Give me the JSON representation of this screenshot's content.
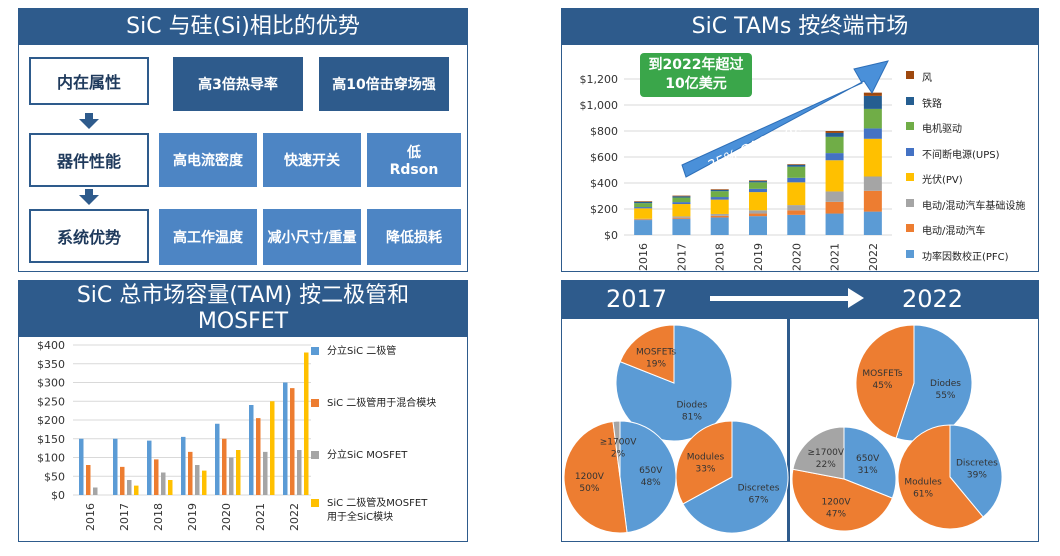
{
  "panels": {
    "advantages": {
      "title": "SiC 与硅(Si)相比的优势",
      "rows": [
        {
          "label": "内在属性",
          "items": [
            "高3倍热导率",
            "高10倍击穿场强"
          ]
        },
        {
          "label": "器件性能",
          "items": [
            "高电流密度",
            "快速开关",
            "低\nRdson"
          ]
        },
        {
          "label": "系统优势",
          "items": [
            "高工作温度",
            "减小尺寸/重量",
            "降低损耗"
          ]
        }
      ]
    },
    "tam": {
      "title": "SiC TAMs 按终端市场",
      "callout": "到2022年超过\n10亿美元",
      "cagr": "35% CAGR 2017-22"
    },
    "diode_mosfet": {
      "title": "SiC 总市场容量(TAM) 按二极管和\nMOSFET"
    },
    "pies": {
      "year_left": "2017",
      "year_right": "2022"
    }
  },
  "chart_data": [
    {
      "type": "bar",
      "stacked": true,
      "title": "SiC TAMs 按终端市场",
      "categories": [
        "2016",
        "2017",
        "2018",
        "2019",
        "2020",
        "2021",
        "2022"
      ],
      "ylim": [
        0,
        1200
      ],
      "yticks": [
        "$0",
        "$200",
        "$400",
        "$600",
        "$800",
        "$1,000",
        "$1,200"
      ],
      "series": [
        {
          "name": "功率因数校正(PFC)",
          "color": "#5b9bd5",
          "values": [
            115,
            125,
            135,
            145,
            155,
            165,
            180
          ]
        },
        {
          "name": "电动/混动汽车",
          "color": "#ed7d31",
          "values": [
            5,
            8,
            12,
            20,
            35,
            90,
            160
          ]
        },
        {
          "name": "电动/混动汽车基础设施",
          "color": "#a5a5a5",
          "values": [
            5,
            10,
            15,
            25,
            40,
            80,
            110
          ]
        },
        {
          "name": "光伏(PV)",
          "color": "#ffc000",
          "values": [
            80,
            95,
            110,
            140,
            175,
            240,
            290
          ]
        },
        {
          "name": "不间断电源(UPS)",
          "color": "#4472c4",
          "values": [
            10,
            15,
            20,
            25,
            35,
            55,
            80
          ]
        },
        {
          "name": "电机驱动",
          "color": "#70ad47",
          "values": [
            30,
            35,
            45,
            50,
            85,
            125,
            150
          ]
        },
        {
          "name": "铁路",
          "color": "#255e91",
          "values": [
            10,
            10,
            10,
            10,
            15,
            30,
            100
          ]
        },
        {
          "name": "风",
          "color": "#9e480e",
          "values": [
            5,
            5,
            5,
            5,
            5,
            15,
            25
          ]
        }
      ]
    },
    {
      "type": "bar",
      "title": "SiC 总市场容量(TAM) 按二极管和MOSFET",
      "categories": [
        "2016",
        "2017",
        "2018",
        "2019",
        "2020",
        "2021",
        "2022"
      ],
      "ylim": [
        0,
        400
      ],
      "yticks": [
        "$0",
        "$50",
        "$100",
        "$150",
        "$200",
        "$250",
        "$300",
        "$350",
        "$400"
      ],
      "series": [
        {
          "name": "分立SiC 二极管",
          "color": "#5b9bd5",
          "values": [
            150,
            150,
            145,
            155,
            190,
            240,
            300
          ]
        },
        {
          "name": "SiC 二极管用于混合模块",
          "color": "#ed7d31",
          "values": [
            80,
            75,
            95,
            115,
            150,
            205,
            285
          ]
        },
        {
          "name": "分立SiC MOSFET",
          "color": "#a5a5a5",
          "values": [
            20,
            40,
            60,
            80,
            100,
            115,
            120
          ]
        },
        {
          "name": "SiC 二极管及MOSFET\n用于全SiC模块",
          "color": "#ffc000",
          "values": [
            0,
            25,
            40,
            65,
            120,
            250,
            380
          ]
        }
      ]
    },
    {
      "type": "pie",
      "year": "2017",
      "slices": [
        {
          "label": "Diodes",
          "value": 81,
          "text": "81%",
          "color": "#5b9bd5"
        },
        {
          "label": "MOSFETs",
          "value": 19,
          "text": "19%",
          "color": "#ed7d31"
        }
      ]
    },
    {
      "type": "pie",
      "year": "2022",
      "slices": [
        {
          "label": "Diodes",
          "value": 55,
          "text": "55%",
          "color": "#5b9bd5"
        },
        {
          "label": "MOSFETs",
          "value": 45,
          "text": "45%",
          "color": "#ed7d31"
        }
      ]
    },
    {
      "type": "pie",
      "year": "2017",
      "slices": [
        {
          "label": "650V",
          "value": 48,
          "text": "48%",
          "color": "#5b9bd5"
        },
        {
          "label": "1200V",
          "value": 50,
          "text": "50%",
          "color": "#ed7d31"
        },
        {
          "label": "≥1700V",
          "value": 2,
          "text": "2%",
          "color": "#a5a5a5"
        }
      ]
    },
    {
      "type": "pie",
      "year": "2017",
      "slices": [
        {
          "label": "Discretes",
          "value": 67,
          "text": "67%",
          "color": "#5b9bd5"
        },
        {
          "label": "Modules",
          "value": 33,
          "text": "33%",
          "color": "#ed7d31"
        }
      ]
    },
    {
      "type": "pie",
      "year": "2022",
      "slices": [
        {
          "label": "650V",
          "value": 31,
          "text": "31%",
          "color": "#5b9bd5"
        },
        {
          "label": "1200V",
          "value": 47,
          "text": "47%",
          "color": "#ed7d31"
        },
        {
          "label": "≥1700V",
          "value": 22,
          "text": "22%",
          "color": "#a5a5a5"
        }
      ]
    },
    {
      "type": "pie",
      "year": "2022",
      "slices": [
        {
          "label": "Discretes",
          "value": 39,
          "text": "39%",
          "color": "#5b9bd5"
        },
        {
          "label": "Modules",
          "value": 61,
          "text": "61%",
          "color": "#ed7d31"
        }
      ]
    }
  ]
}
